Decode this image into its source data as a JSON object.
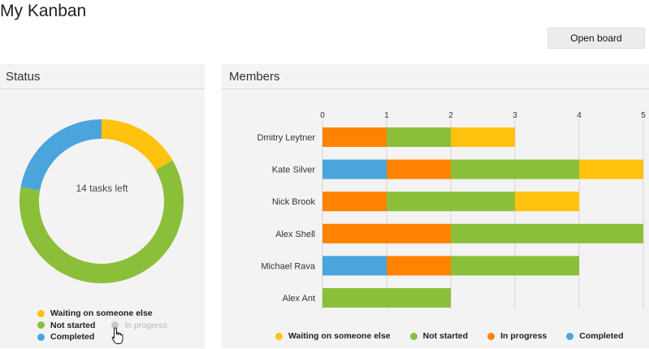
{
  "app": {
    "title": "My Kanban"
  },
  "toolbar": {
    "open_board_label": "Open board"
  },
  "status_panel": {
    "title": "Status",
    "center_text": "14 tasks left",
    "legend": [
      {
        "label": "Waiting on someone else",
        "color": "#FFC20E"
      },
      {
        "label": "Not started",
        "color": "#8BBF3A"
      },
      {
        "label": "Completed",
        "color": "#4AA5DC"
      },
      {
        "label": "In progress",
        "color": "#C8C8C8",
        "state": "disabled"
      }
    ],
    "donut": [
      {
        "name": "Waiting on someone else",
        "value": 3,
        "color": "#FFC20E"
      },
      {
        "name": "Not started",
        "value": 11,
        "color": "#8BBF3A"
      },
      {
        "name": "Completed",
        "value": 4,
        "color": "#4AA5DC"
      }
    ]
  },
  "members_panel": {
    "title": "Members",
    "legend": [
      {
        "label": "Waiting on someone else",
        "color": "#FFC20E"
      },
      {
        "label": "Not started",
        "color": "#8BBF3A"
      },
      {
        "label": "In progress",
        "color": "#FF8200"
      },
      {
        "label": "Completed",
        "color": "#4AA5DC"
      }
    ]
  },
  "chart_data": {
    "type": "bar",
    "orientation": "horizontal",
    "stacked": true,
    "categories": [
      "Dmitry Leytner",
      "Kate Silver",
      "Nick Brook",
      "Alex Shell",
      "Michael Rava",
      "Alex Ant"
    ],
    "xlim": [
      0,
      5
    ],
    "xticks": [
      0,
      1,
      2,
      3,
      4,
      5
    ],
    "series": [
      {
        "name": "Completed",
        "color": "#4AA5DC",
        "values": [
          0,
          1,
          0,
          0,
          1,
          0
        ]
      },
      {
        "name": "In progress",
        "color": "#FF8200",
        "values": [
          1,
          1,
          1,
          2,
          1,
          0
        ]
      },
      {
        "name": "Not started",
        "color": "#8BBF3A",
        "values": [
          1,
          2,
          2,
          3,
          2,
          2
        ]
      },
      {
        "name": "Waiting on someone else",
        "color": "#FFC20E",
        "values": [
          1,
          1,
          1,
          0,
          0,
          0
        ]
      }
    ],
    "legend_position": "bottom"
  }
}
